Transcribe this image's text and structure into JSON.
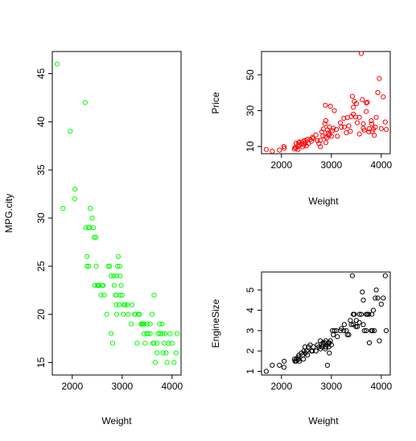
{
  "chart_data": [
    {
      "type": "scatter",
      "xlabel": "Weight",
      "ylabel": "MPG.city",
      "xlim": [
        1600,
        4180
      ],
      "ylim": [
        13.7,
        47.3
      ],
      "xticks": [
        2000,
        3000,
        4000
      ],
      "yticks": [
        15,
        20,
        25,
        30,
        35,
        40,
        45
      ],
      "point_color": "#00ff00",
      "series": [
        {
          "x": [
            1695,
            1815,
            1960,
            2055,
            2050,
            2260,
            2295,
            2330,
            2350,
            2345,
            2400,
            2425,
            2440,
            2450,
            2360,
            2330,
            2270,
            2295,
            2470,
            2480,
            2500,
            2520,
            2540,
            2575,
            2600,
            2620,
            2640,
            2690,
            2720,
            2750,
            2780,
            2810,
            2840,
            2870,
            2880,
            2890,
            2920,
            2950,
            2960,
            2980,
            3000,
            3020,
            3040,
            3100,
            3200,
            3250,
            3300,
            3350,
            3400,
            3420,
            3440,
            3460,
            3500,
            3520,
            3560,
            3600,
            3620,
            3640,
            3660,
            3700,
            3720,
            3760,
            3800,
            3820,
            3840,
            3860,
            3880,
            3900,
            3930,
            3960,
            4000,
            4040,
            4080,
            4100,
            2780,
            2830,
            2910,
            2960,
            2880,
            3060,
            3120,
            3180,
            3260,
            3320,
            3380,
            3440,
            3490,
            3560,
            3640,
            3700,
            3750,
            3810,
            2890,
            2940
          ],
          "y": [
            46,
            31,
            39,
            33,
            32,
            42,
            26,
            25,
            29,
            29,
            30,
            29,
            28,
            23,
            31,
            29,
            29,
            25,
            28,
            25,
            23,
            23,
            23,
            22,
            23,
            23,
            22,
            20,
            25,
            25,
            18,
            17,
            23,
            22,
            21,
            24,
            26,
            25,
            22,
            23,
            22,
            20,
            21,
            21,
            21,
            20,
            17,
            20,
            19,
            19,
            18,
            17,
            19,
            18,
            18,
            20,
            17,
            22,
            15,
            16,
            18,
            18,
            19,
            16,
            17,
            18,
            16,
            15,
            17,
            18,
            17,
            15,
            16,
            18,
            24,
            24,
            25,
            24,
            22,
            21,
            20,
            19,
            20,
            20,
            19,
            19,
            18,
            19,
            17,
            17,
            19,
            18,
            20,
            21
          ]
        }
      ]
    },
    {
      "type": "scatter",
      "xlabel": "Weight",
      "ylabel": "Price",
      "xlim": [
        1600,
        4180
      ],
      "ylim": [
        6,
        63
      ],
      "xticks": [
        2000,
        3000,
        4000
      ],
      "yticks": [
        10,
        30,
        50
      ],
      "point_color": "#ff0000",
      "series": [
        {
          "x": [
            1695,
            1815,
            1960,
            2055,
            2050,
            2260,
            2295,
            2330,
            2350,
            2345,
            2400,
            2425,
            2440,
            2450,
            2360,
            2330,
            2270,
            2295,
            2470,
            2480,
            2500,
            2520,
            2540,
            2575,
            2600,
            2620,
            2640,
            2690,
            2720,
            2750,
            2780,
            2810,
            2840,
            2870,
            2880,
            2890,
            2920,
            2950,
            2960,
            2980,
            3000,
            3020,
            3040,
            3100,
            3200,
            3250,
            3300,
            3350,
            3400,
            3420,
            3440,
            3460,
            3500,
            3520,
            3560,
            3600,
            3620,
            3640,
            3660,
            3700,
            3720,
            3760,
            3800,
            3820,
            3840,
            3860,
            3880,
            3900,
            3930,
            3960,
            4000,
            4040,
            4080,
            4100,
            2780,
            2830,
            2910,
            2960,
            2880,
            3060,
            3120,
            3180,
            3260,
            3320,
            3380,
            3440,
            3490,
            3560,
            3640,
            3700,
            3750,
            3810,
            2890,
            2940
          ],
          "y": [
            8.4,
            7.4,
            8.0,
            9.1,
            10.0,
            8.6,
            9.2,
            10.1,
            11.1,
            12.2,
            11.3,
            9.8,
            13.0,
            10.9,
            12.5,
            8.3,
            9.5,
            11.9,
            13.4,
            12.1,
            10.4,
            14.0,
            11.8,
            13.9,
            12.9,
            15.1,
            14.6,
            16.5,
            13.3,
            11.6,
            13.5,
            18.2,
            19.8,
            22.7,
            15.6,
            24.4,
            19.3,
            16.3,
            20.9,
            32.5,
            15.7,
            18.9,
            20.2,
            19.5,
            20.8,
            25.8,
            17.7,
            21.5,
            26.7,
            38.0,
            28.0,
            35.2,
            33.9,
            23.3,
            26.3,
            61.9,
            36.1,
            22.7,
            19.1,
            29.5,
            34.7,
            19.9,
            24.4,
            18.4,
            19.7,
            16.3,
            20.8,
            26.3,
            40.1,
            47.9,
            20.0,
            37.7,
            23.7,
            19.5,
            9.9,
            15.9,
            14.9,
            16.6,
            33.0,
            30.0,
            15.8,
            23.3,
            20.9,
            26.1,
            18.5,
            31.9,
            26.5,
            17.0,
            20.2,
            34.3,
            18.2,
            22.6,
            12.2,
            17.5
          ]
        }
      ]
    },
    {
      "type": "scatter",
      "xlabel": "Weight",
      "ylabel": "EngineSize",
      "xlim": [
        1600,
        4180
      ],
      "ylim": [
        0.82,
        5.88
      ],
      "xticks": [
        2000,
        3000,
        4000
      ],
      "yticks": [
        1,
        2,
        3,
        4,
        5
      ],
      "point_color": "#000000",
      "series": [
        {
          "x": [
            1695,
            1815,
            1960,
            2055,
            2050,
            2260,
            2295,
            2330,
            2350,
            2345,
            2400,
            2425,
            2440,
            2450,
            2360,
            2330,
            2270,
            2295,
            2470,
            2480,
            2500,
            2520,
            2540,
            2575,
            2600,
            2620,
            2640,
            2690,
            2720,
            2750,
            2780,
            2810,
            2840,
            2870,
            2880,
            2890,
            2920,
            2950,
            2960,
            2980,
            3000,
            3020,
            3040,
            3100,
            3200,
            3250,
            3300,
            3350,
            3400,
            3420,
            3440,
            3460,
            3500,
            3520,
            3560,
            3600,
            3620,
            3640,
            3660,
            3700,
            3720,
            3760,
            3800,
            3820,
            3840,
            3860,
            3880,
            3900,
            3930,
            3960,
            4000,
            4040,
            4080,
            4100,
            2780,
            2830,
            2910,
            2960,
            2880,
            3060,
            3120,
            3180,
            3260,
            3320,
            3380,
            3440,
            3490,
            3560,
            3640,
            3700,
            3750,
            3810,
            2890,
            2940
          ],
          "y": [
            1.0,
            1.3,
            1.3,
            1.5,
            1.2,
            1.6,
            1.5,
            1.6,
            1.8,
            1.6,
            1.9,
            1.8,
            1.6,
            2.0,
            1.5,
            1.7,
            1.5,
            1.6,
            2.2,
            1.9,
            2.0,
            1.8,
            2.2,
            2.3,
            2.0,
            2.0,
            2.2,
            2.0,
            2.3,
            2.2,
            2.5,
            2.2,
            2.3,
            2.4,
            2.2,
            2.5,
            1.3,
            2.2,
            2.4,
            2.5,
            2.3,
            3.0,
            2.8,
            3.0,
            3.1,
            3.0,
            3.0,
            2.8,
            3.3,
            5.7,
            3.3,
            3.8,
            3.5,
            3.2,
            3.8,
            3.8,
            4.9,
            3.3,
            3.0,
            3.8,
            3.8,
            2.4,
            3.0,
            3.0,
            4.0,
            3.0,
            4.6,
            5.0,
            4.6,
            2.5,
            4.3,
            4.6,
            5.7,
            3.0,
            2.1,
            2.4,
            2.3,
            1.9,
            2.1,
            3.0,
            2.7,
            3.0,
            3.3,
            2.8,
            3.5,
            3.8,
            3.2,
            3.4,
            4.5,
            3.0,
            3.8,
            3.8,
            2.2,
            2.4
          ]
        }
      ]
    }
  ]
}
